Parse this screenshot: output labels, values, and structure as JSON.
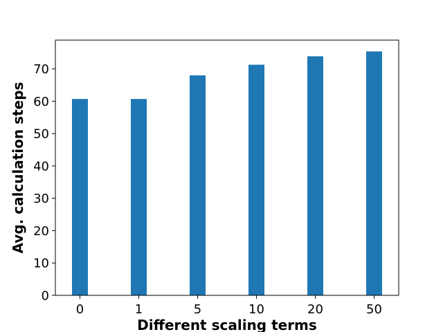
{
  "chart_data": {
    "type": "bar",
    "title": "",
    "xlabel": "Different scaling terms",
    "ylabel": "Avg. calculation steps",
    "categories": [
      "0",
      "1",
      "5",
      "10",
      "20",
      "50"
    ],
    "values": [
      60.7,
      60.7,
      68.0,
      71.3,
      73.9,
      75.4
    ],
    "ylim": [
      0,
      78.9
    ],
    "yticks": [
      "0",
      "10",
      "20",
      "30",
      "40",
      "50",
      "60",
      "70"
    ],
    "grid": false,
    "legend": "none",
    "bar_color": "#1f77b4"
  }
}
